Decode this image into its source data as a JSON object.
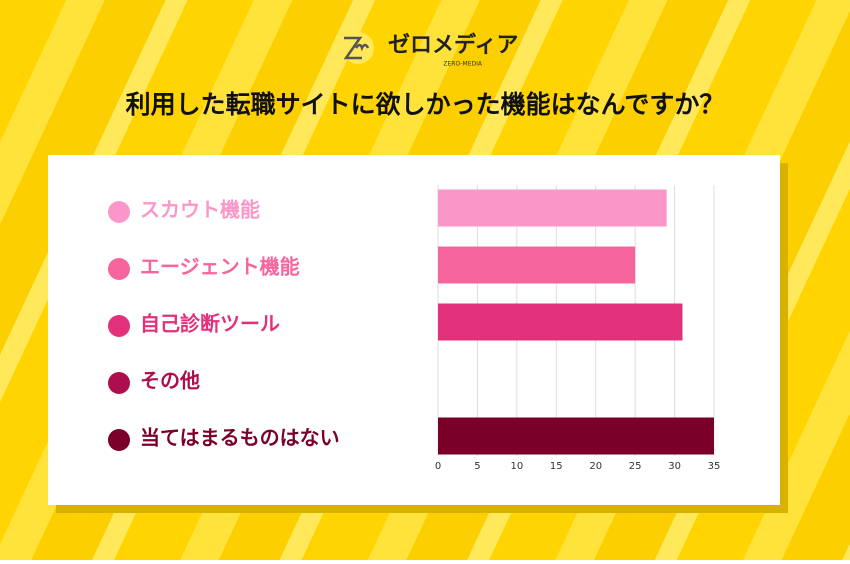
{
  "logo": {
    "name": "ゼロメディア",
    "sub": "ZERO-MEDIA"
  },
  "chart_data": {
    "type": "bar",
    "orientation": "horizontal",
    "title": "利用した転職サイトに欲しかった機能はなんですか？",
    "categories": [
      "スカウト機能",
      "エージェント機能",
      "自己診断ツール",
      "その他",
      "当てはまるものはない"
    ],
    "values": [
      29,
      25,
      31,
      0,
      35
    ],
    "colors": [
      "#fb97c8",
      "#f7659f",
      "#e2307a",
      "#ad0f4e",
      "#7a0029"
    ],
    "xlim": [
      0,
      35
    ],
    "xticks": [
      0,
      5,
      10,
      15,
      20,
      25,
      30,
      35
    ],
    "grid": true
  }
}
